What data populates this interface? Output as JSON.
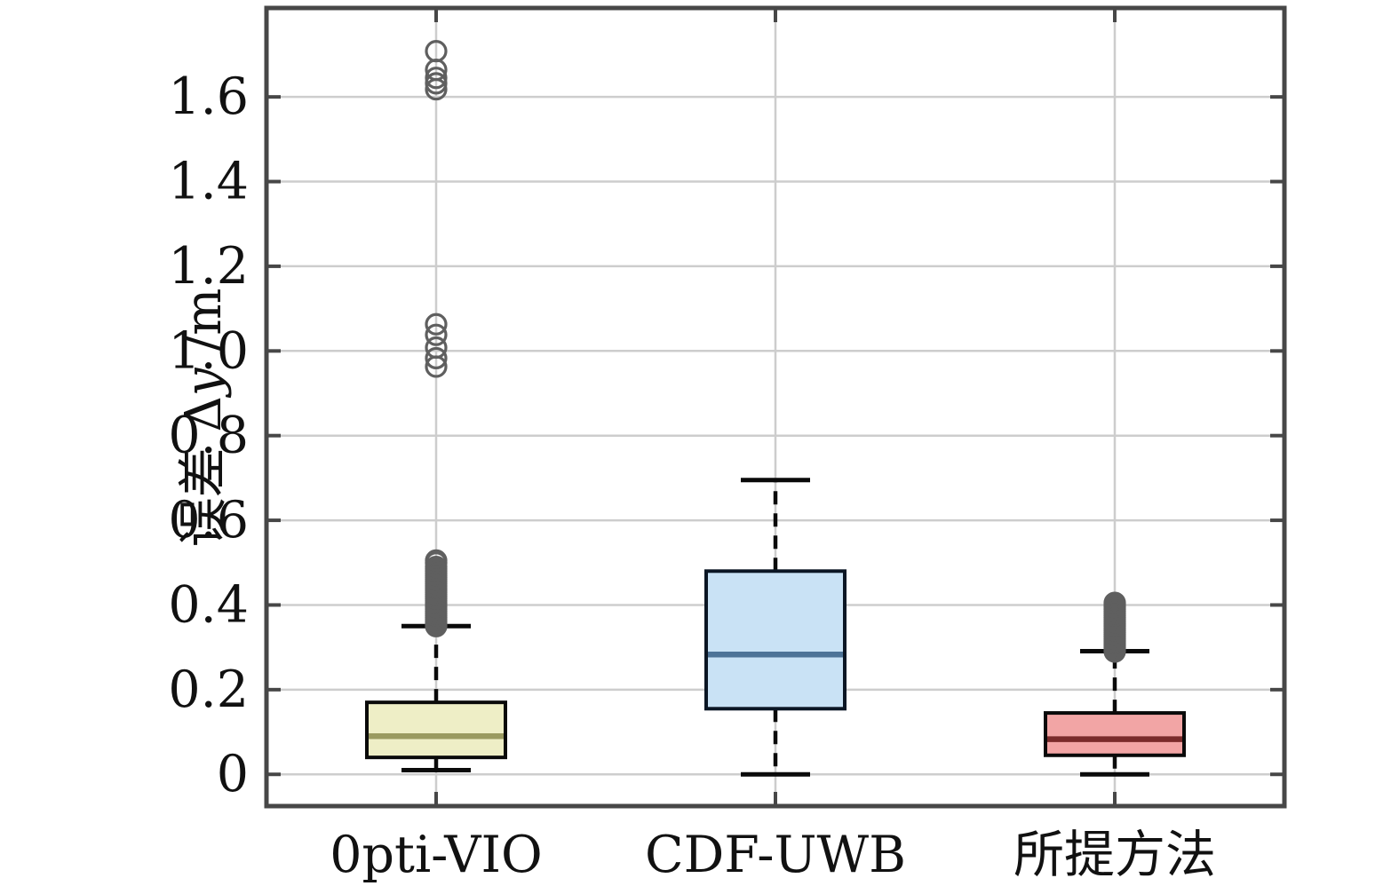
{
  "chart_data": {
    "type": "boxplot",
    "title": "",
    "xlabel": "",
    "ylabel": "误差 Δy /m",
    "ylabel_parts": {
      "prefix": "误差 ",
      "delta": "Δ",
      "italic_var": "y",
      "suffix": " /m"
    },
    "categories": [
      "0pti-VIO",
      "CDF-UWB",
      "所提方法"
    ],
    "ytick_values": [
      0,
      0.2,
      0.4,
      0.6,
      0.8,
      1.0,
      1.2,
      1.4,
      1.6
    ],
    "ytick_labels": [
      "0",
      "0.2",
      "0.4",
      "0.6",
      "0.8",
      "1.0",
      "1.2",
      "1.4",
      "1.6"
    ],
    "ylim": [
      -0.075,
      1.81
    ],
    "grid": true,
    "legend": "none",
    "series": [
      {
        "name": "0pti-VIO",
        "whisker_low": 0.01,
        "q1": 0.04,
        "median": 0.09,
        "q3": 0.17,
        "whisker_high": 0.35,
        "fill": "#eeeec6",
        "median_color": "#9a9a60",
        "edge_color": "#0a0a0a",
        "outliers": [
          0.35,
          0.355,
          0.36,
          0.365,
          0.37,
          0.375,
          0.38,
          0.385,
          0.39,
          0.395,
          0.4,
          0.405,
          0.41,
          0.415,
          0.42,
          0.425,
          0.43,
          0.435,
          0.44,
          0.445,
          0.45,
          0.455,
          0.46,
          0.465,
          0.47,
          0.475,
          0.48,
          0.485,
          0.49,
          0.5,
          0.505,
          0.963,
          0.983,
          1.008,
          1.038,
          1.063,
          1.618,
          1.632,
          1.645,
          1.664,
          1.708
        ]
      },
      {
        "name": "CDF-UWB",
        "whisker_low": 0.0,
        "q1": 0.155,
        "median": 0.283,
        "q3": 0.48,
        "whisker_high": 0.695,
        "fill": "#c9e2f5",
        "median_color": "#4d7397",
        "edge_color": "#0b1624",
        "outliers": []
      },
      {
        "name": "所提方法",
        "whisker_low": 0.0,
        "q1": 0.045,
        "median": 0.083,
        "q3": 0.145,
        "fill": "#f2a5a5",
        "median_color": "#7a2b2b",
        "edge_color": "#0a0a0a",
        "whisker_high": 0.291,
        "outliers": [
          0.29,
          0.295,
          0.3,
          0.305,
          0.31,
          0.315,
          0.32,
          0.325,
          0.33,
          0.335,
          0.34,
          0.345,
          0.35,
          0.355,
          0.36,
          0.365,
          0.37,
          0.375,
          0.38,
          0.385,
          0.39,
          0.395,
          0.4,
          0.405
        ]
      }
    ],
    "style": {
      "grid_color": "#cdcdcd",
      "axis_color": "#474747",
      "whisker_color": "#0a0a0a",
      "outlier_color": "#5f5f5f",
      "background": "#ffffff"
    }
  }
}
